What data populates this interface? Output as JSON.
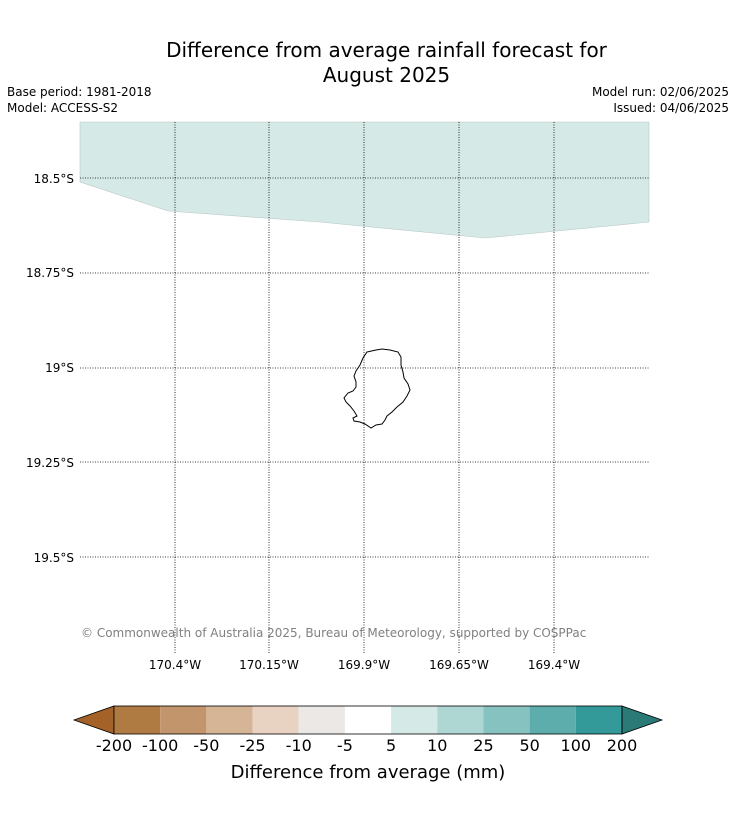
{
  "title": {
    "line1": "Difference from average rainfall forecast for",
    "line2": "August 2025"
  },
  "meta": {
    "base_period": "Base period: 1981-2018",
    "model": "Model: ACCESS-S2",
    "model_run": "Model run: 02/06/2025",
    "issued": "Issued: 04/06/2025"
  },
  "map": {
    "lat_labels": [
      "18.5°S",
      "18.75°S",
      "19°S",
      "19.25°S",
      "19.5°S"
    ],
    "lon_labels": [
      "170.4°W",
      "170.15°W",
      "169.9°W",
      "169.65°W",
      "169.4°W"
    ],
    "copyright": "© Commonwealth of Australia 2025, Bureau of Meteorology, supported by COSPPac",
    "shaded_region_category": "5 to 10",
    "shaded_region_color": "#d5e9e7",
    "island": "Niue",
    "island_outline_color": "#000000"
  },
  "colorbar": {
    "title": "Difference from average (mm)",
    "labels": [
      "-200",
      "-100",
      "-50",
      "-25",
      "-10",
      "-5",
      "5",
      "10",
      "25",
      "50",
      "100",
      "200"
    ],
    "colors": [
      "#a46229",
      "#b07a43",
      "#c3956c",
      "#d6b496",
      "#e8d2c2",
      "#ebe8e6",
      "#ffffff",
      "#d5e9e7",
      "#aed6d3",
      "#86c2c0",
      "#5cadab",
      "#339999",
      "#2c7a78"
    ]
  }
}
